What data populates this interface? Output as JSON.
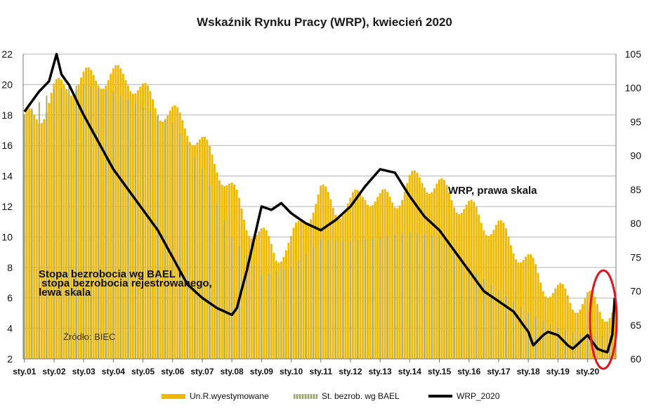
{
  "chart_data": {
    "type": "bar+line",
    "title": "Wskaźnik Rynku Pracy (WRP), kwiecień 2020",
    "categories": [
      "sty.01",
      "sty.02",
      "sty.03",
      "sty.04",
      "sty.05",
      "sty.06",
      "sty.07",
      "sty.08",
      "sty.09",
      "sty.10",
      "sty.11",
      "sty.12",
      "sty.13",
      "sty.14",
      "sty.15",
      "sty.16",
      "sty.17",
      "sty.18",
      "sty.19",
      "sty.20"
    ],
    "left_axis": {
      "min": 2,
      "max": 22,
      "ticks": [
        "2",
        "4",
        "6",
        "8",
        "10",
        "12",
        "14",
        "16",
        "18",
        "20",
        "22"
      ]
    },
    "right_axis": {
      "min": 60,
      "max": 105,
      "ticks": [
        "60",
        "65",
        "70",
        "75",
        "80",
        "85",
        "90",
        "95",
        "100",
        "105"
      ]
    },
    "series": [
      {
        "name": "Un.R.wyestymowane",
        "kind": "bar",
        "axis": "left",
        "color": "#f0b800",
        "anchor_months": [
          0,
          6,
          12,
          18,
          24,
          30,
          36,
          42,
          48,
          54,
          60,
          66,
          72,
          78,
          84,
          90,
          96,
          102,
          108,
          114,
          120,
          126,
          132,
          138,
          144,
          150,
          156,
          162,
          168,
          174,
          180,
          186,
          192,
          198,
          204,
          210,
          216,
          222,
          228,
          234,
          240
        ],
        "anchor_values": [
          17.5,
          18.0,
          19.5,
          20.0,
          20.3,
          20.5,
          20.5,
          20.5,
          19.5,
          18.5,
          18.0,
          17.2,
          16.0,
          14.8,
          13.0,
          11.0,
          10.0,
          9.0,
          9.5,
          11.5,
          12.8,
          12.0,
          12.0,
          13.0,
          12.3,
          12.5,
          13.5,
          13.8,
          13.2,
          12.5,
          11.8,
          11.0,
          10.5,
          9.5,
          8.3,
          7.0,
          6.3,
          5.8,
          5.8,
          5.2,
          5.3
        ],
        "amplitude": 0.8
      },
      {
        "name": "St. bezrob. wg BAEL",
        "kind": "bar",
        "axis": "left",
        "color": "#a8b078",
        "quarterly_months": [
          0,
          12,
          24,
          36,
          48,
          60,
          72,
          84,
          96,
          108,
          120,
          132,
          144,
          156,
          168,
          180,
          192,
          204,
          216,
          228
        ],
        "quarterly_values": [
          18.0,
          19.7,
          20.0,
          19.5,
          18.5,
          17.5,
          14.5,
          10.0,
          7.5,
          8.0,
          9.8,
          9.7,
          10.0,
          10.3,
          10.0,
          8.0,
          6.5,
          5.0,
          4.0,
          3.5
        ]
      },
      {
        "name": "WRP_2020",
        "kind": "line",
        "axis": "right",
        "color": "#000000",
        "anchor_months": [
          0,
          6,
          10,
          13,
          15,
          18,
          24,
          30,
          36,
          42,
          48,
          54,
          60,
          66,
          72,
          78,
          84,
          86,
          90,
          96,
          100,
          104,
          108,
          114,
          120,
          126,
          132,
          138,
          144,
          150,
          156,
          160,
          162,
          168,
          174,
          180,
          186,
          192,
          198,
          204,
          206,
          210,
          212,
          216,
          220,
          222,
          228,
          232,
          234,
          236,
          238,
          239
        ],
        "anchor_values": [
          96.5,
          99.5,
          101.0,
          105.0,
          102.0,
          100.5,
          96.0,
          92.0,
          88.0,
          85.0,
          82.0,
          79.0,
          75.0,
          71.0,
          69.0,
          67.5,
          66.5,
          67.5,
          73.0,
          82.5,
          82.0,
          83.0,
          81.5,
          80.0,
          79.0,
          80.5,
          82.5,
          85.5,
          88.0,
          87.5,
          84.0,
          82.0,
          81.0,
          79.0,
          76.0,
          73.0,
          70.0,
          68.5,
          67.0,
          64.0,
          62.0,
          63.5,
          64.0,
          63.5,
          62.0,
          61.5,
          63.5,
          61.5,
          61.2,
          61.0,
          63.5,
          69.0
        ]
      }
    ],
    "annotations": {
      "wrp_note": "WRP, prawa skala",
      "bael_note_line1": "Stopa bezrobocia wg BAEL i",
      "bael_note_line2": " stopa bezrobocia rejestrowanego,",
      "bael_note_line3": "lewa skala",
      "source": "Źródło: BIEC"
    },
    "highlight": {
      "shape": "ellipse",
      "color": "#e0141e",
      "target": "sty.20"
    }
  },
  "legend": {
    "bars_label": "Un.R.wyestymowane",
    "bael_label": "St. bezrob. wg BAEL",
    "line_label": "WRP_2020"
  }
}
